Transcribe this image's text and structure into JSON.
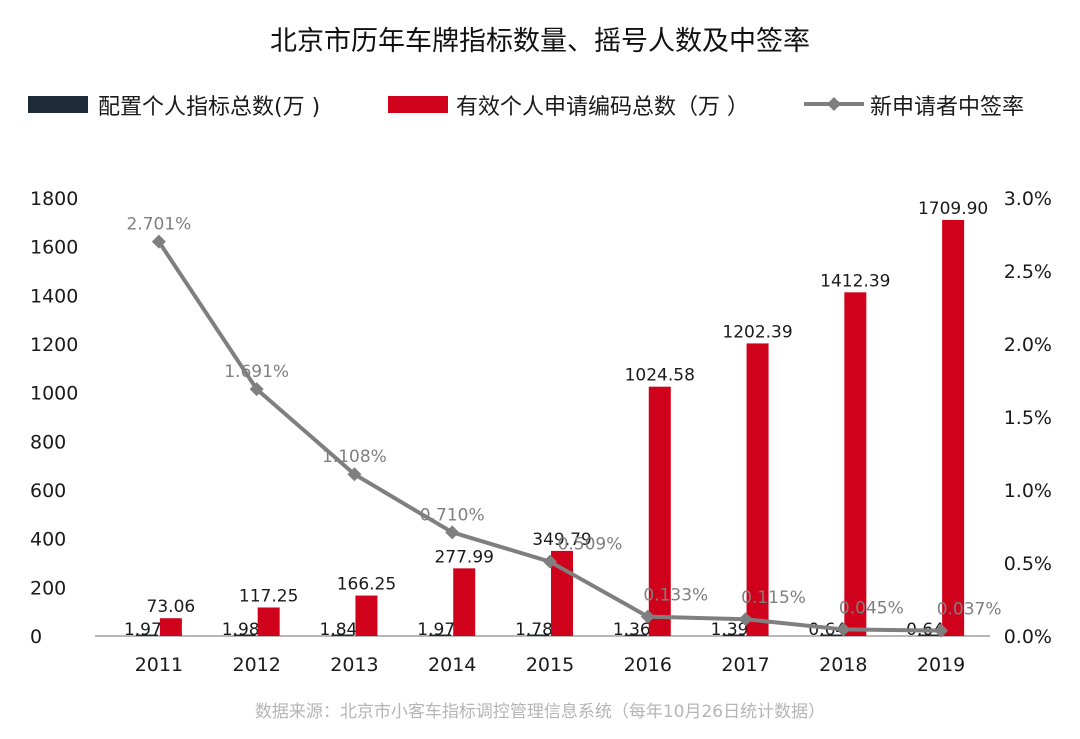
{
  "chart_data": {
    "type": "bar",
    "title": "北京市历年车牌指标数量、摇号人数及中签率",
    "categories": [
      "2011",
      "2012",
      "2013",
      "2014",
      "2015",
      "2016",
      "2017",
      "2018",
      "2019"
    ],
    "series": [
      {
        "name": "配置个人指标总数(万 )",
        "kind": "bar",
        "axis": "left",
        "color": "#1c2a3a",
        "values": [
          1.97,
          1.98,
          1.84,
          1.97,
          1.78,
          1.36,
          1.39,
          0.64,
          0.64
        ],
        "labels": [
          "1.97",
          "1.98",
          "1.84",
          "1.97",
          "1.78",
          "1.36",
          "1.39",
          "0.64",
          "0.64"
        ]
      },
      {
        "name": "有效个人申请编码总数（万 ）",
        "kind": "bar",
        "axis": "left",
        "color": "#d0021b",
        "values": [
          73.06,
          117.25,
          166.25,
          277.99,
          349.79,
          1024.58,
          1202.39,
          1412.39,
          1709.9
        ],
        "labels": [
          "73.06",
          "117.25",
          "166.25",
          "277.99",
          "349.79",
          "1024.58",
          "1202.39",
          "1412.39",
          "1709.90"
        ]
      },
      {
        "name": "新申请者中签率",
        "kind": "line",
        "axis": "right",
        "color": "#7f7f7f",
        "values": [
          2.701,
          1.691,
          1.108,
          0.71,
          0.509,
          0.133,
          0.115,
          0.045,
          0.037
        ],
        "labels": [
          "2.701%",
          "1.691%",
          "1.108%",
          "0.710%",
          "0.509%",
          "0.133%",
          "0.115%",
          "0.045%",
          "0.037%"
        ]
      }
    ],
    "y_left": {
      "ylim": [
        0,
        1800
      ],
      "ticks": [
        "0",
        "200",
        "400",
        "600",
        "800",
        "1000",
        "1200",
        "1400",
        "1600",
        "1800"
      ]
    },
    "y_right": {
      "ylim": [
        0,
        3.0
      ],
      "ticks": [
        "0.0%",
        "0.5%",
        "1.0%",
        "1.5%",
        "2.0%",
        "2.5%",
        "3.0%"
      ]
    },
    "grid": false,
    "legend": "top",
    "source": "数据来源：北京市小客车指标调控管理信息系统（每年10月26日统计数据）"
  }
}
